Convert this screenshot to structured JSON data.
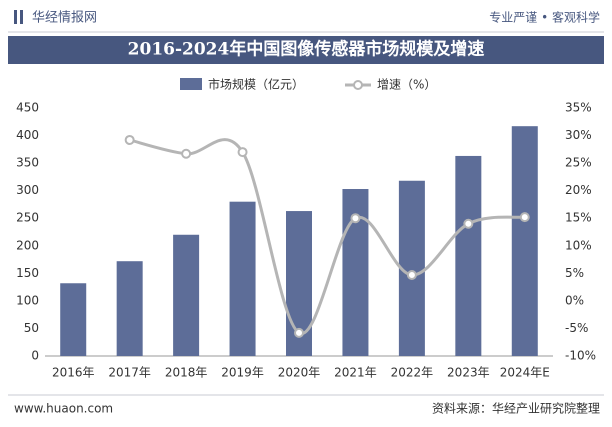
{
  "header": {
    "brand": "华经情报网",
    "slogan": "专业严谨 • 客观科学"
  },
  "footer": {
    "site": "www.huaon.com",
    "source": "资料来源：华经产业研究院整理"
  },
  "chart_data": {
    "type": "bar-line",
    "title": "2016-2024年中国图像传感器市场规模及增速",
    "categories": [
      "2016年",
      "2017年",
      "2018年",
      "2019年",
      "2020年",
      "2021年",
      "2022年",
      "2023年",
      "2024年E"
    ],
    "series": [
      {
        "name": "市场规模（亿元）",
        "type": "bar",
        "color": "#5d6d98",
        "values": [
          132,
          172,
          220,
          280,
          263,
          303,
          318,
          363,
          417
        ]
      },
      {
        "name": "增速（%）",
        "type": "line",
        "axis": "y2",
        "color": "#b5b5b5",
        "values": [
          null,
          29.2,
          26.7,
          27.0,
          -5.8,
          15.0,
          4.7,
          14.0,
          15.2
        ]
      }
    ],
    "ylim": [
      0,
      450
    ],
    "yticks": [
      0,
      50,
      100,
      150,
      200,
      250,
      300,
      350,
      400,
      450
    ],
    "y2lim": [
      -10,
      35
    ],
    "y2ticks": [
      {
        "value": -10,
        "label": "-10%"
      },
      {
        "value": -5,
        "label": "-5%"
      },
      {
        "value": 0,
        "label": "0%"
      },
      {
        "value": 5,
        "label": "5%"
      },
      {
        "value": 10,
        "label": "10%"
      },
      {
        "value": 15,
        "label": "15%"
      },
      {
        "value": 20,
        "label": "20%"
      },
      {
        "value": 25,
        "label": "25%"
      },
      {
        "value": 30,
        "label": "30%"
      },
      {
        "value": 35,
        "label": "35%"
      }
    ]
  }
}
